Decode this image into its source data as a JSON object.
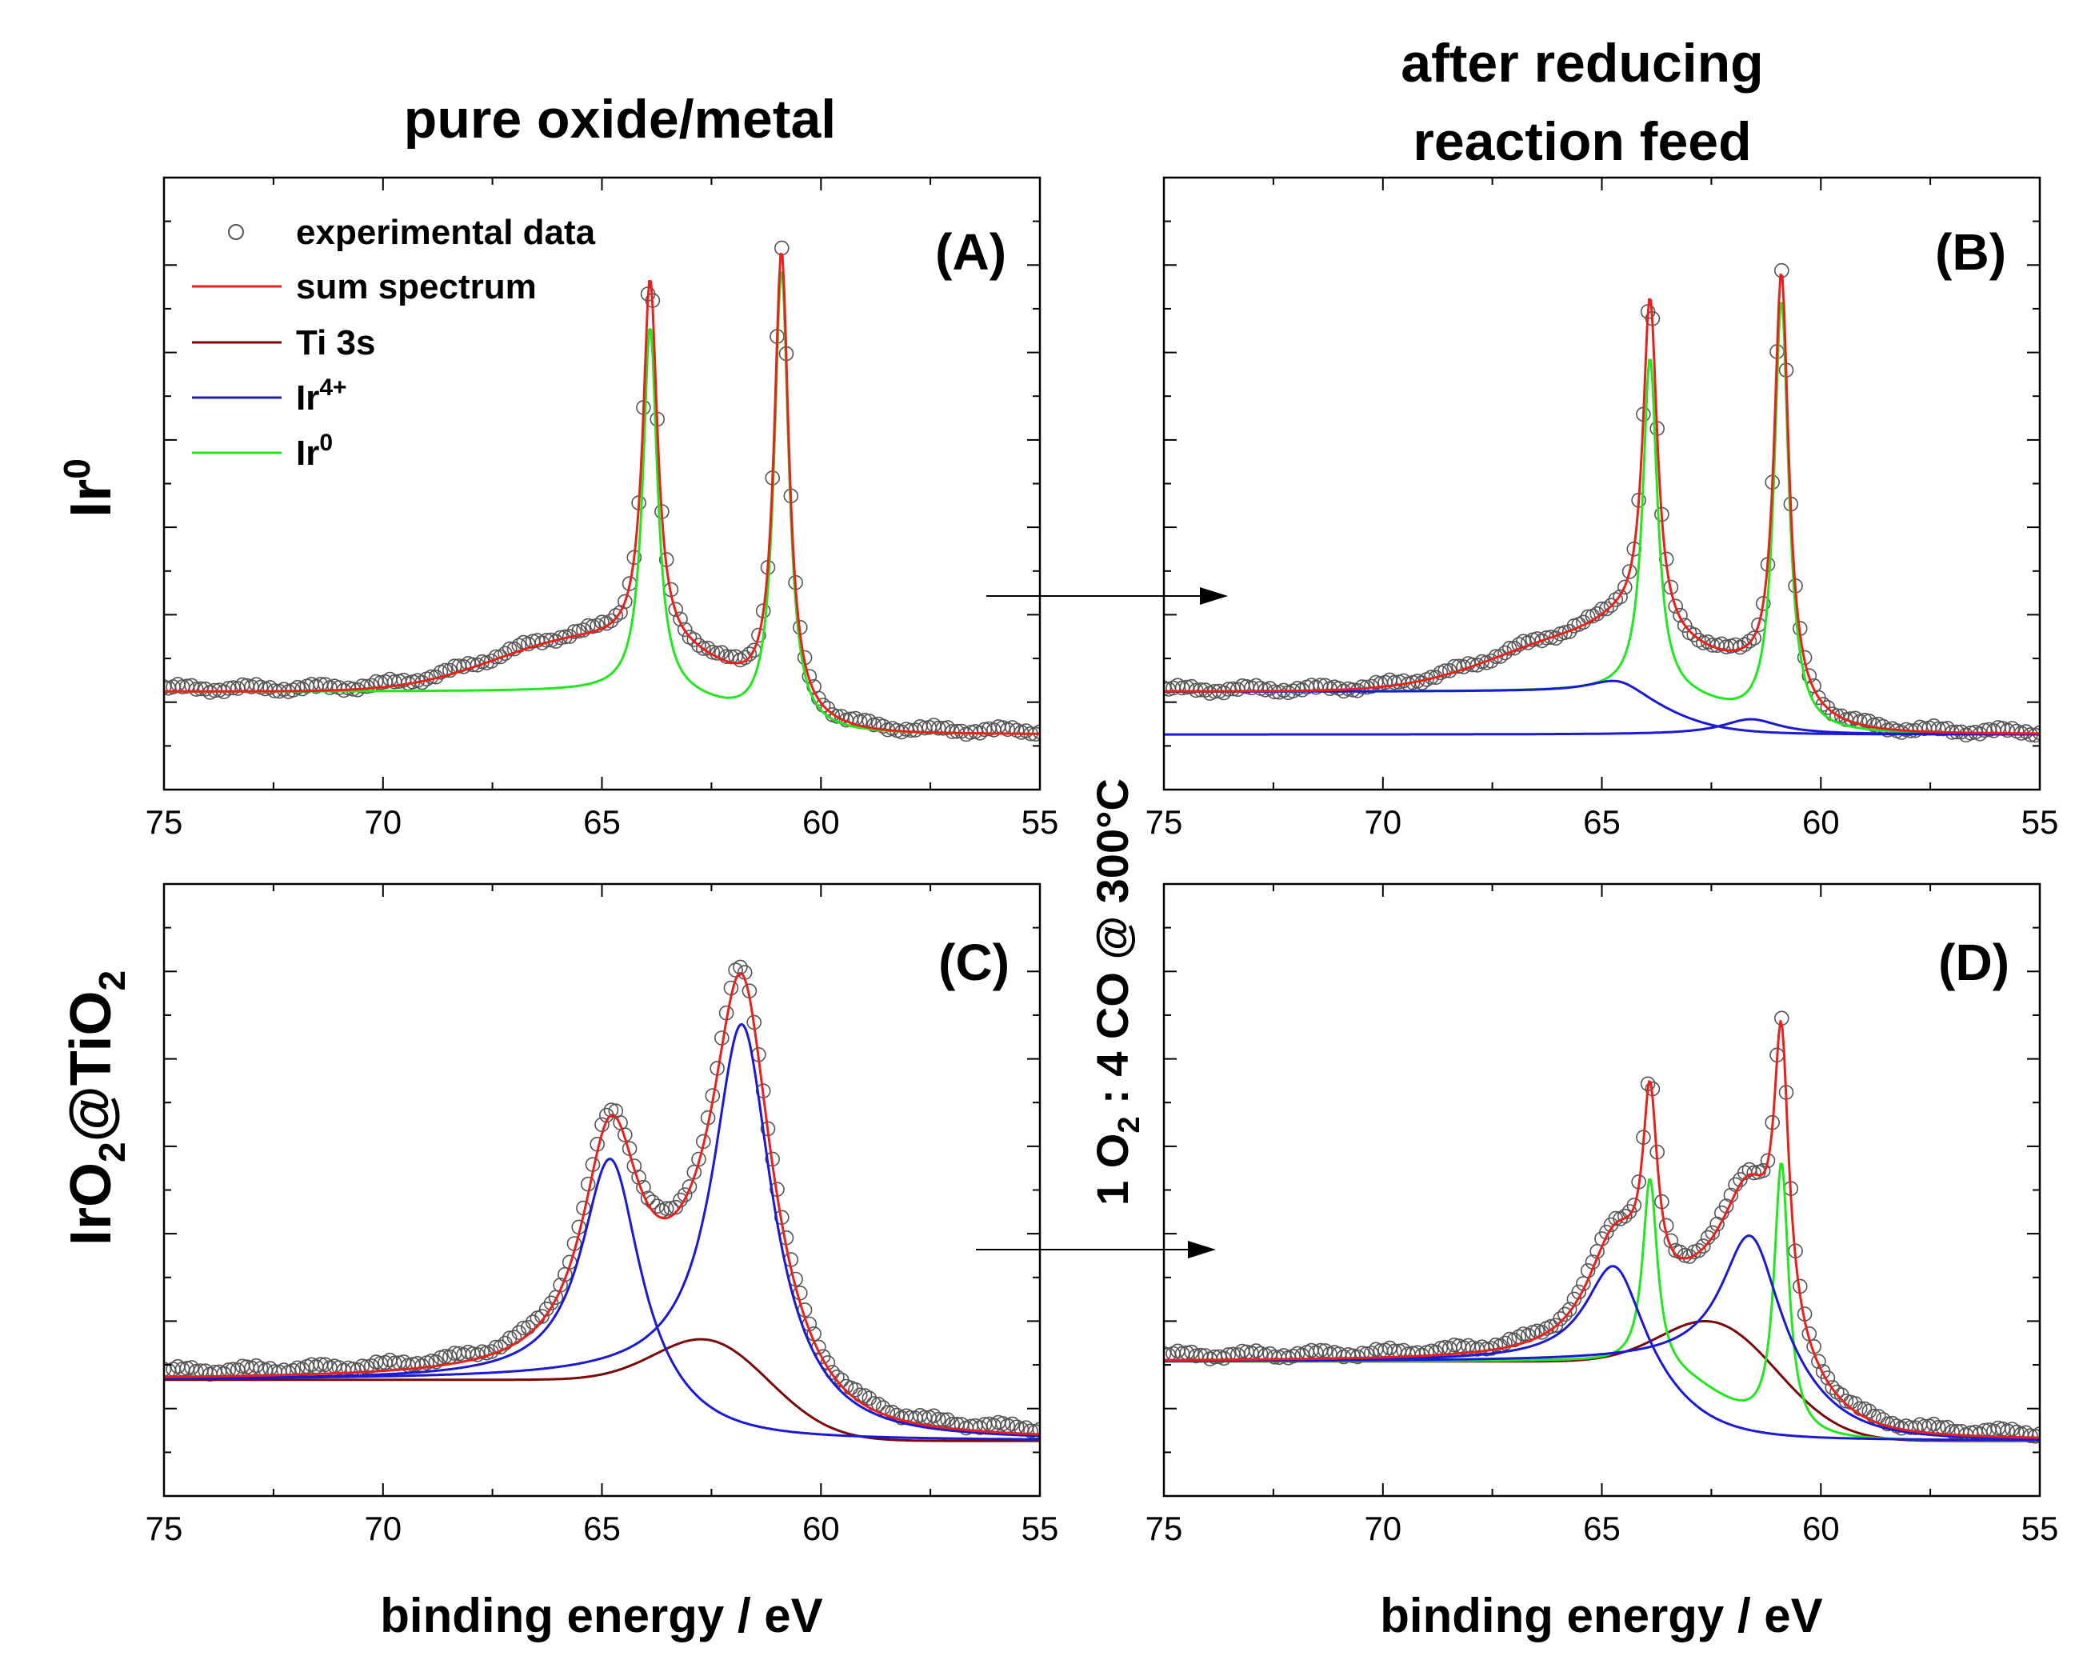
{
  "figure": {
    "col_title_left": "pure oxide/metal",
    "col_title_right_line1": "after reducing",
    "col_title_right_line2": "reaction feed",
    "row_label_top": {
      "base": "Ir",
      "sup": "0"
    },
    "row_label_bottom": {
      "p1": "IrO",
      "s1": "2",
      "p2": "@TiO",
      "s2": "2"
    },
    "side_label": {
      "p1": "1 O",
      "s1": "2",
      "p2": " : 4 CO @ 300°C"
    },
    "xlabel": "binding energy / eV"
  },
  "legend": {
    "experimental": "experimental data",
    "sum": "sum spectrum",
    "ti3s": "Ti 3s",
    "ir4": {
      "base": "Ir",
      "sup": "4+"
    },
    "ir0": {
      "base": "Ir",
      "sup": "0"
    }
  },
  "colors": {
    "sum": "#e8211d",
    "ti3s": "#7a0a0a",
    "ir4": "#1a1ad6",
    "ir0": "#22e61e",
    "markers": "#555555"
  },
  "chart_data": [
    {
      "id": "A",
      "tag": "(A)",
      "type": "line",
      "xlim": [
        75,
        55
      ],
      "ylim": [
        0,
        100
      ],
      "x_ticks": [
        75,
        70,
        65,
        60,
        55
      ],
      "baseline": {
        "hi": 16,
        "lo": 9,
        "mid": 62.2,
        "width": 0.7
      },
      "components": [
        {
          "name": "Ir0",
          "color": "ir0",
          "peaks": [
            [
              63.9,
              60,
              0.2
            ],
            [
              60.9,
              75,
              0.2
            ]
          ],
          "step": {
            "hi": 16,
            "lo": 9,
            "mid": 62.2,
            "width": 0.7
          }
        }
      ],
      "sum_extra": [
        [
          65.5,
          8,
          2.0
        ],
        [
          62.3,
          4,
          1.4
        ]
      ],
      "ti_components": [],
      "marker_offset": 0.5
    },
    {
      "id": "B",
      "tag": "(B)",
      "type": "line",
      "xlim": [
        75,
        55
      ],
      "ylim": [
        0,
        100
      ],
      "x_ticks": [
        75,
        70,
        65,
        60,
        55
      ],
      "baseline": {
        "hi": 16,
        "lo": 9,
        "mid": 62.2,
        "width": 0.7
      },
      "components": [
        {
          "name": "Ir0",
          "color": "ir0",
          "peaks": [
            [
              63.9,
              55,
              0.2
            ],
            [
              60.9,
              70,
              0.2
            ]
          ],
          "step": {
            "hi": 16,
            "lo": 9,
            "mid": 62.2,
            "width": 0.7
          }
        },
        {
          "name": "Ir4_a",
          "color": "ir4",
          "peaks": [
            [
              64.6,
              3,
              0.8
            ]
          ],
          "step": {
            "hi": 16,
            "lo": 9,
            "mid": 63.6,
            "width": 0.7
          }
        },
        {
          "name": "Ir4_b",
          "color": "ir4",
          "peaks": [
            [
              61.6,
              2.5,
              0.8
            ]
          ],
          "step": {
            "hi": 9,
            "lo": 9,
            "mid": 61,
            "width": 0.7
          }
        }
      ],
      "sum_extra": [
        [
          65.5,
          8,
          2.0
        ],
        [
          62.3,
          4,
          1.4
        ]
      ],
      "ti_components": [],
      "marker_offset": 0.3
    },
    {
      "id": "C",
      "tag": "(C)",
      "type": "line",
      "xlim": [
        75,
        55
      ],
      "ylim": [
        0,
        100
      ],
      "x_ticks": [
        75,
        70,
        65,
        60,
        55
      ],
      "baseline": {
        "hi": 19,
        "lo": 9,
        "mid": 62.3,
        "width": 0.7
      },
      "components": [
        {
          "name": "Ir4_a",
          "color": "ir4",
          "peaks": [
            [
              64.8,
              38,
              0.8
            ]
          ],
          "step": {
            "hi": 19,
            "lo": 9,
            "mid": 63.8,
            "width": 0.7
          }
        },
        {
          "name": "Ir4_b",
          "color": "ir4",
          "peaks": [
            [
              61.8,
              60,
              0.8
            ]
          ],
          "step": {
            "hi": 19,
            "lo": 9,
            "mid": 60.8,
            "width": 0.7
          }
        }
      ],
      "sum_extra": [],
      "ti_components": [
        {
          "name": "Ti3s",
          "color": "ti3s",
          "center": 62.2,
          "amp": 11,
          "sigma": 1.3
        }
      ],
      "marker_offset": 1.0
    },
    {
      "id": "D",
      "tag": "(D)",
      "type": "line",
      "xlim": [
        75,
        55
      ],
      "ylim": [
        0,
        100
      ],
      "x_ticks": [
        75,
        70,
        65,
        60,
        55
      ],
      "baseline": {
        "hi": 22,
        "lo": 9,
        "mid": 62.3,
        "width": 0.7
      },
      "components": [
        {
          "name": "Ir0",
          "color": "ir0",
          "peaks": [
            [
              63.9,
              31,
              0.2
            ],
            [
              60.9,
              44,
              0.2
            ]
          ],
          "step": {
            "hi": 22,
            "lo": 9,
            "mid": 62.3,
            "width": 0.7
          }
        },
        {
          "name": "Ir4_a",
          "color": "ir4",
          "peaks": [
            [
              64.7,
              18,
              0.8
            ]
          ],
          "step": {
            "hi": 22,
            "lo": 9,
            "mid": 63.7,
            "width": 0.7
          }
        },
        {
          "name": "Ir4_b",
          "color": "ir4",
          "peaks": [
            [
              61.6,
              23,
              0.8
            ]
          ],
          "step": {
            "hi": 22,
            "lo": 9,
            "mid": 60.6,
            "width": 0.7
          }
        }
      ],
      "sum_extra": [],
      "ti_components": [
        {
          "name": "Ti3s",
          "color": "ti3s",
          "center": 62.0,
          "amp": 13,
          "sigma": 1.3
        }
      ],
      "marker_offset": 0.8
    }
  ]
}
